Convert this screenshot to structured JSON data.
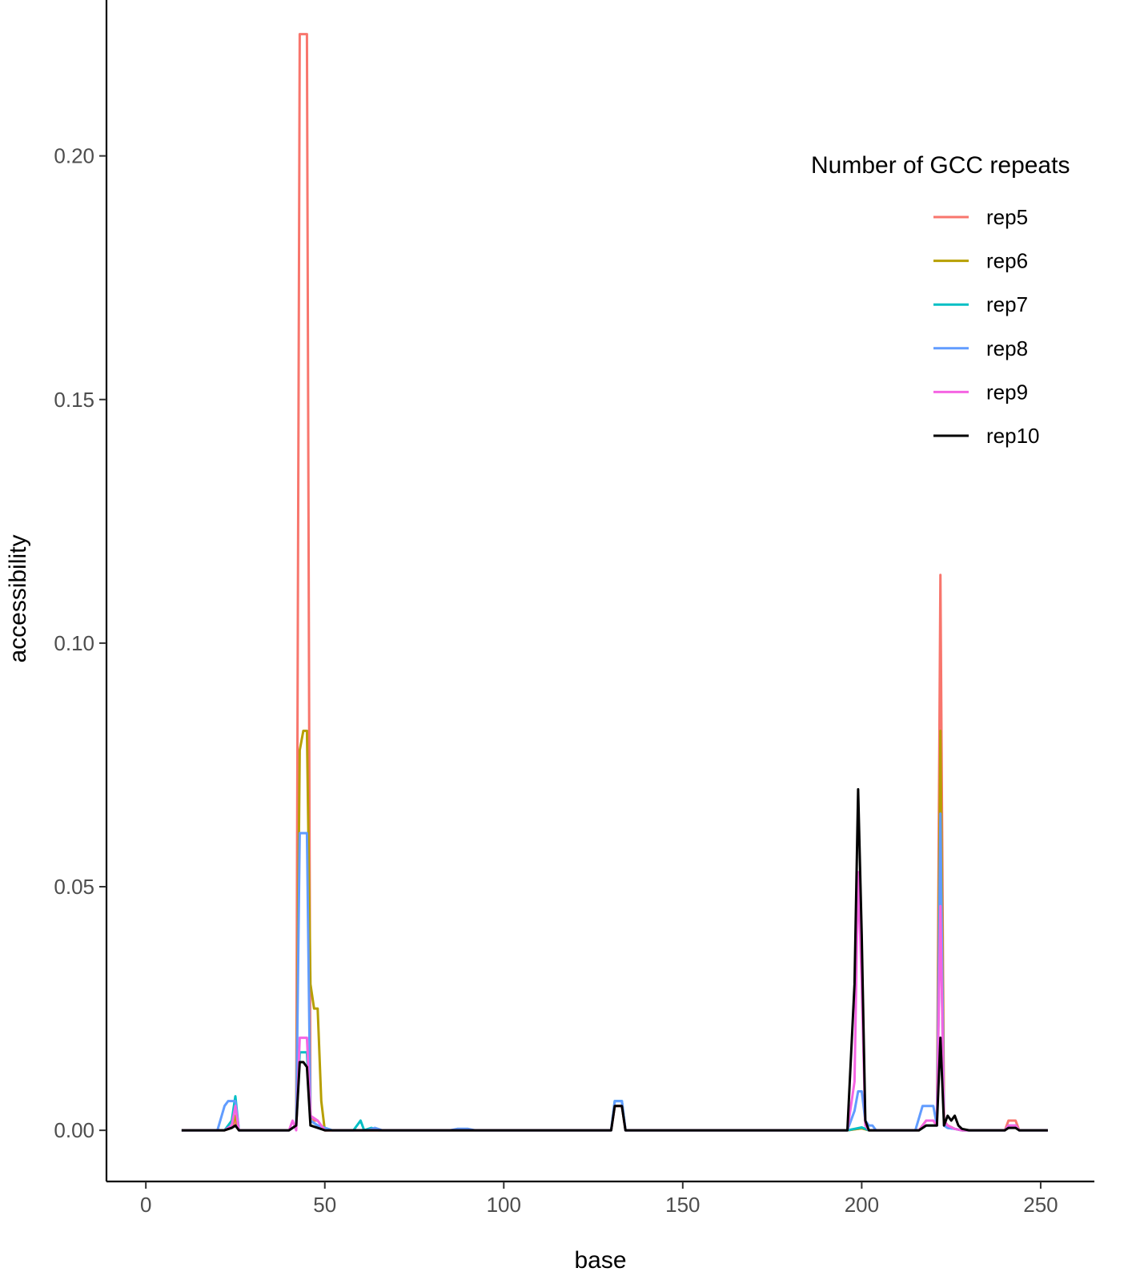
{
  "chart_data": {
    "type": "line",
    "xlabel": "base",
    "ylabel": "accessibility",
    "xlim": [
      -11,
      265
    ],
    "ylim": [
      -0.0105,
      0.232
    ],
    "x_ticks": [
      0,
      50,
      100,
      150,
      200,
      250
    ],
    "x_tick_labels": [
      "0",
      "50",
      "100",
      "150",
      "200",
      "250"
    ],
    "y_ticks": [
      0,
      0.05,
      0.1,
      0.15,
      0.2
    ],
    "y_tick_labels": [
      "0.00",
      "0.05",
      "0.10",
      "0.15",
      "0.20"
    ],
    "grid": false,
    "legend": {
      "title": "Number of GCC repeats",
      "placement": "right"
    },
    "series": [
      {
        "name": "rep5",
        "color": "#F8766D",
        "points": [
          [
            10,
            0
          ],
          [
            22,
            0
          ],
          [
            24,
            0.0005
          ],
          [
            25,
            0.002
          ],
          [
            26,
            0
          ],
          [
            40,
            0
          ],
          [
            42,
            0.001
          ],
          [
            43,
            0.225
          ],
          [
            44,
            0.225
          ],
          [
            45,
            0.225
          ],
          [
            46,
            0.003
          ],
          [
            47,
            0.002
          ],
          [
            48,
            0.002
          ],
          [
            50,
            0
          ],
          [
            130,
            0
          ],
          [
            131,
            0.005
          ],
          [
            133,
            0.005
          ],
          [
            134,
            0
          ],
          [
            196,
            0
          ],
          [
            198,
            0.0002
          ],
          [
            200,
            0.0004
          ],
          [
            202,
            0
          ],
          [
            216,
            0
          ],
          [
            218,
            0.001
          ],
          [
            220,
            0.001
          ],
          [
            221,
            0.001
          ],
          [
            222,
            0.114
          ],
          [
            223,
            0.002
          ],
          [
            224,
            0.001
          ],
          [
            226,
            0.0003
          ],
          [
            228,
            0
          ],
          [
            240,
            0
          ],
          [
            241,
            0.002
          ],
          [
            243,
            0.002
          ],
          [
            244,
            0
          ],
          [
            252,
            0
          ]
        ]
      },
      {
        "name": "rep6",
        "color": "#B79F00",
        "points": [
          [
            10,
            0
          ],
          [
            22,
            0
          ],
          [
            24,
            0.001
          ],
          [
            25,
            0.003
          ],
          [
            26,
            0
          ],
          [
            40,
            0
          ],
          [
            42,
            0.001
          ],
          [
            43,
            0.078
          ],
          [
            44,
            0.082
          ],
          [
            45,
            0.082
          ],
          [
            46,
            0.03
          ],
          [
            47,
            0.025
          ],
          [
            48,
            0.025
          ],
          [
            49,
            0.006
          ],
          [
            50,
            0
          ],
          [
            130,
            0
          ],
          [
            131,
            0.005
          ],
          [
            133,
            0.005
          ],
          [
            134,
            0
          ],
          [
            196,
            0
          ],
          [
            198,
            0.0002
          ],
          [
            200,
            0.0004
          ],
          [
            202,
            0
          ],
          [
            216,
            0
          ],
          [
            218,
            0.002
          ],
          [
            220,
            0.002
          ],
          [
            221,
            0.001
          ],
          [
            222,
            0.082
          ],
          [
            223,
            0.002
          ],
          [
            224,
            0.001
          ],
          [
            226,
            0.0003
          ],
          [
            228,
            0
          ],
          [
            240,
            0
          ],
          [
            241,
            0.001
          ],
          [
            243,
            0.001
          ],
          [
            244,
            0
          ],
          [
            252,
            0
          ]
        ]
      },
      {
        "name": "rep7",
        "color": "#00BFC4",
        "points": [
          [
            10,
            0
          ],
          [
            22,
            0
          ],
          [
            24,
            0.002
          ],
          [
            25,
            0.007
          ],
          [
            26,
            0
          ],
          [
            40,
            0
          ],
          [
            42,
            0.001
          ],
          [
            43,
            0.016
          ],
          [
            44,
            0.016
          ],
          [
            45,
            0.016
          ],
          [
            46,
            0.002
          ],
          [
            48,
            0.001
          ],
          [
            50,
            0.0005
          ],
          [
            52,
            0
          ],
          [
            58,
            0
          ],
          [
            60,
            0.002
          ],
          [
            61,
            0
          ],
          [
            63,
            0.0005
          ],
          [
            65,
            0
          ],
          [
            130,
            0
          ],
          [
            131,
            0.006
          ],
          [
            133,
            0.006
          ],
          [
            134,
            0
          ],
          [
            196,
            0
          ],
          [
            198,
            0.0003
          ],
          [
            200,
            0.0006
          ],
          [
            202,
            0
          ],
          [
            216,
            0
          ],
          [
            218,
            0.001
          ],
          [
            220,
            0.001
          ],
          [
            221,
            0.001
          ],
          [
            222,
            0.05
          ],
          [
            223,
            0.001
          ],
          [
            224,
            0.0005
          ],
          [
            226,
            0.0003
          ],
          [
            228,
            0
          ],
          [
            240,
            0
          ],
          [
            241,
            0.001
          ],
          [
            243,
            0.001
          ],
          [
            244,
            0
          ],
          [
            252,
            0
          ]
        ]
      },
      {
        "name": "rep8",
        "color": "#619CFF",
        "points": [
          [
            10,
            0
          ],
          [
            20,
            0
          ],
          [
            22,
            0.005
          ],
          [
            23,
            0.006
          ],
          [
            24,
            0.006
          ],
          [
            25,
            0.006
          ],
          [
            26,
            0
          ],
          [
            40,
            0
          ],
          [
            42,
            0.001
          ],
          [
            43,
            0.061
          ],
          [
            44,
            0.061
          ],
          [
            45,
            0.061
          ],
          [
            46,
            0.002
          ],
          [
            48,
            0.001
          ],
          [
            50,
            0.0005
          ],
          [
            52,
            0
          ],
          [
            62,
            0
          ],
          [
            64,
            0.0005
          ],
          [
            66,
            0
          ],
          [
            85,
            0
          ],
          [
            87,
            0.0003
          ],
          [
            90,
            0.0003
          ],
          [
            92,
            0
          ],
          [
            130,
            0
          ],
          [
            131,
            0.006
          ],
          [
            133,
            0.006
          ],
          [
            134,
            0
          ],
          [
            196,
            0
          ],
          [
            198,
            0.004
          ],
          [
            199,
            0.008
          ],
          [
            200,
            0.008
          ],
          [
            201,
            0.002
          ],
          [
            202,
            0.001
          ],
          [
            203,
            0.001
          ],
          [
            204,
            0
          ],
          [
            215,
            0
          ],
          [
            217,
            0.005
          ],
          [
            220,
            0.005
          ],
          [
            221,
            0.001
          ],
          [
            222,
            0.065
          ],
          [
            223,
            0.001
          ],
          [
            224,
            0.0005
          ],
          [
            226,
            0.0003
          ],
          [
            228,
            0
          ],
          [
            240,
            0
          ],
          [
            241,
            0.001
          ],
          [
            243,
            0.001
          ],
          [
            244,
            0
          ],
          [
            252,
            0
          ]
        ]
      },
      {
        "name": "rep9",
        "color": "#F564E3",
        "points": [
          [
            10,
            0
          ],
          [
            22,
            0
          ],
          [
            24,
            0.001
          ],
          [
            25,
            0.005
          ],
          [
            26,
            0
          ],
          [
            40,
            0
          ],
          [
            41,
            0.002
          ],
          [
            42,
            0
          ],
          [
            43,
            0.019
          ],
          [
            44,
            0.019
          ],
          [
            45,
            0.019
          ],
          [
            46,
            0.003
          ],
          [
            48,
            0.002
          ],
          [
            50,
            0
          ],
          [
            130,
            0
          ],
          [
            131,
            0.005
          ],
          [
            133,
            0.005
          ],
          [
            134,
            0
          ],
          [
            196,
            0
          ],
          [
            198,
            0.01
          ],
          [
            199,
            0.053
          ],
          [
            200,
            0.03
          ],
          [
            201,
            0.001
          ],
          [
            202,
            0
          ],
          [
            216,
            0
          ],
          [
            218,
            0.002
          ],
          [
            220,
            0.002
          ],
          [
            221,
            0.001
          ],
          [
            222,
            0.046
          ],
          [
            223,
            0.002
          ],
          [
            224,
            0.001
          ],
          [
            226,
            0.0003
          ],
          [
            228,
            0
          ],
          [
            240,
            0
          ],
          [
            241,
            0.001
          ],
          [
            243,
            0.001
          ],
          [
            244,
            0
          ],
          [
            252,
            0
          ]
        ]
      },
      {
        "name": "rep10",
        "color": "#000000",
        "points": [
          [
            10,
            0
          ],
          [
            22,
            0
          ],
          [
            24,
            0.0005
          ],
          [
            25,
            0.001
          ],
          [
            26,
            0
          ],
          [
            40,
            0
          ],
          [
            42,
            0.001
          ],
          [
            43,
            0.014
          ],
          [
            44,
            0.014
          ],
          [
            45,
            0.013
          ],
          [
            46,
            0.001
          ],
          [
            48,
            0.0005
          ],
          [
            50,
            0
          ],
          [
            130,
            0
          ],
          [
            131,
            0.005
          ],
          [
            133,
            0.005
          ],
          [
            134,
            0
          ],
          [
            196,
            0
          ],
          [
            198,
            0.03
          ],
          [
            199,
            0.07
          ],
          [
            200,
            0.04
          ],
          [
            201,
            0.002
          ],
          [
            202,
            0
          ],
          [
            216,
            0
          ],
          [
            218,
            0.001
          ],
          [
            220,
            0.001
          ],
          [
            221,
            0.001
          ],
          [
            222,
            0.019
          ],
          [
            223,
            0.001
          ],
          [
            224,
            0.003
          ],
          [
            225,
            0.002
          ],
          [
            226,
            0.003
          ],
          [
            227,
            0.001
          ],
          [
            228,
            0.0003
          ],
          [
            230,
            0
          ],
          [
            240,
            0
          ],
          [
            241,
            0.0005
          ],
          [
            243,
            0.0005
          ],
          [
            244,
            0
          ],
          [
            252,
            0
          ]
        ]
      }
    ]
  }
}
